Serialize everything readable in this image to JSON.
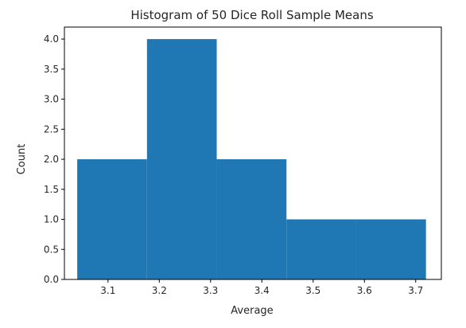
{
  "chart_data": {
    "type": "bar",
    "title": "Histogram of 50 Dice Roll Sample Means",
    "xlabel": "Average",
    "ylabel": "Count",
    "xlim": [
      3.015,
      3.75
    ],
    "ylim": [
      0,
      4.2
    ],
    "x_ticks": [
      3.1,
      3.2,
      3.3,
      3.4,
      3.5,
      3.6,
      3.7
    ],
    "x_tick_labels": [
      "3.1",
      "3.2",
      "3.3",
      "3.4",
      "3.5",
      "3.6",
      "3.7"
    ],
    "y_ticks": [
      0,
      0.5,
      1,
      1.5,
      2,
      2.5,
      3,
      3.5,
      4
    ],
    "y_tick_labels": [
      "0.0",
      "0.5",
      "1.0",
      "1.5",
      "2.0",
      "2.5",
      "3.0",
      "3.5",
      "4.0"
    ],
    "bins": [
      {
        "start": 3.04,
        "end": 3.176,
        "count": 2
      },
      {
        "start": 3.176,
        "end": 3.312,
        "count": 4
      },
      {
        "start": 3.312,
        "end": 3.448,
        "count": 2
      },
      {
        "start": 3.448,
        "end": 3.584,
        "count": 1
      },
      {
        "start": 3.584,
        "end": 3.72,
        "count": 1
      }
    ],
    "grid": false,
    "legend": "none",
    "bar_color": "#1f77b4"
  }
}
